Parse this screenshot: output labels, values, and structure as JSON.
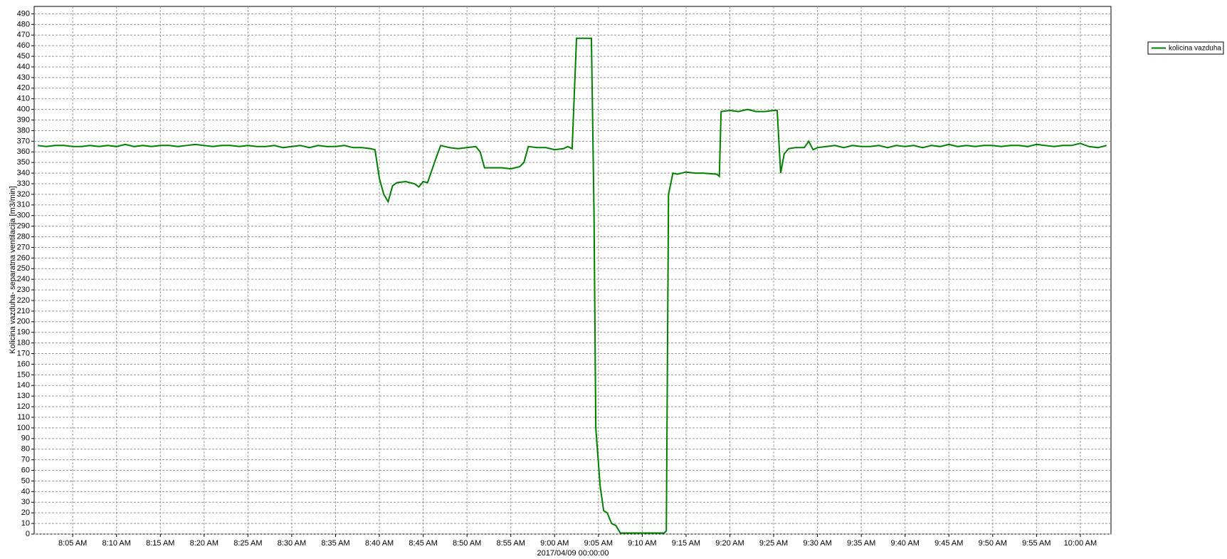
{
  "chart_data": {
    "type": "line",
    "y_label": "Kolicina vazduha- separatna ventilacija [m3/min]",
    "x_label": "2017/04/09 00:00:00",
    "legend": "top-right",
    "grid": true,
    "ylim": [
      0,
      497
    ],
    "yticks": [
      0,
      10,
      20,
      30,
      40,
      50,
      60,
      70,
      80,
      90,
      100,
      110,
      120,
      130,
      140,
      150,
      160,
      170,
      180,
      190,
      200,
      210,
      220,
      230,
      240,
      250,
      260,
      270,
      280,
      290,
      300,
      310,
      320,
      330,
      340,
      350,
      360,
      370,
      380,
      390,
      400,
      410,
      420,
      430,
      440,
      450,
      460,
      470,
      480,
      490
    ],
    "xlim": [
      "08:00:36",
      "10:03:30"
    ],
    "xticks": [
      {
        "value": "08:05",
        "label": "8:05 AM"
      },
      {
        "value": "08:10",
        "label": "8:10 AM"
      },
      {
        "value": "08:15",
        "label": "8:15 AM"
      },
      {
        "value": "08:20",
        "label": "8:20 AM"
      },
      {
        "value": "08:25",
        "label": "8:25 AM"
      },
      {
        "value": "08:30",
        "label": "8:30 AM"
      },
      {
        "value": "08:35",
        "label": "8:35 AM"
      },
      {
        "value": "08:40",
        "label": "8:40 AM"
      },
      {
        "value": "08:45",
        "label": "8:45 AM"
      },
      {
        "value": "08:50",
        "label": "8:50 AM"
      },
      {
        "value": "08:55",
        "label": "8:55 AM"
      },
      {
        "value": "09:00",
        "label": "9:00 AM"
      },
      {
        "value": "09:05",
        "label": "9:05 AM"
      },
      {
        "value": "09:10",
        "label": "9:10 AM"
      },
      {
        "value": "09:15",
        "label": "9:15 AM"
      },
      {
        "value": "09:20",
        "label": "9:20 AM"
      },
      {
        "value": "09:25",
        "label": "9:25 AM"
      },
      {
        "value": "09:30",
        "label": "9:30 AM"
      },
      {
        "value": "09:35",
        "label": "9:35 AM"
      },
      {
        "value": "09:40",
        "label": "9:40 AM"
      },
      {
        "value": "09:45",
        "label": "9:45 AM"
      },
      {
        "value": "09:50",
        "label": "9:50 AM"
      },
      {
        "value": "09:55",
        "label": "9:55 AM"
      },
      {
        "value": "10:00",
        "label": "10:00 AM"
      }
    ],
    "x": [
      "08:01",
      "08:02",
      "08:03",
      "08:04",
      "08:05",
      "08:06",
      "08:07",
      "08:08",
      "08:09",
      "08:10",
      "08:11",
      "08:12",
      "08:13",
      "08:14",
      "08:15",
      "08:16",
      "08:17",
      "08:18",
      "08:19",
      "08:20",
      "08:21",
      "08:22",
      "08:23",
      "08:24",
      "08:25",
      "08:26",
      "08:27",
      "08:28",
      "08:29",
      "08:30",
      "08:31",
      "08:32",
      "08:33",
      "08:34",
      "08:35",
      "08:36",
      "08:37",
      "08:38",
      "08:39",
      "08:39:30",
      "08:40:00",
      "08:40:30",
      "08:41:00",
      "08:41:30",
      "08:42:00",
      "08:43:00",
      "08:44:00",
      "08:44:30",
      "08:45:00",
      "08:45:30",
      "08:46:30",
      "08:47:00",
      "08:48:00",
      "08:49:00",
      "08:50:00",
      "08:51:00",
      "08:51:30",
      "08:52:00",
      "08:53:00",
      "08:54:00",
      "08:55:00",
      "08:56:00",
      "08:56:30",
      "08:57:00",
      "08:58:00",
      "08:59:00",
      "09:00:00",
      "09:01:00",
      "09:01:30",
      "09:02:00",
      "09:02:30",
      "09:04:12",
      "09:04:30",
      "09:04:42",
      "09:05:12",
      "09:05:36",
      "09:06:00",
      "09:06:30",
      "09:07:00",
      "09:07:30",
      "09:12:30",
      "09:12:45",
      "09:13:00",
      "09:13:30",
      "09:14:00",
      "09:15:00",
      "09:16:00",
      "09:17:00",
      "09:18:30",
      "09:18:48",
      "09:19:00",
      "09:20:00",
      "09:21:00",
      "09:22:00",
      "09:23:00",
      "09:24:00",
      "09:25:00",
      "09:25:24",
      "09:25:48",
      "09:26:12",
      "09:26:42",
      "09:27:30",
      "09:28:30",
      "09:29:00",
      "09:29:30",
      "09:30",
      "09:31",
      "09:32",
      "09:33",
      "09:34",
      "09:35",
      "09:36",
      "09:37",
      "09:38",
      "09:39",
      "09:40",
      "09:41",
      "09:42",
      "09:43",
      "09:44",
      "09:45",
      "09:46",
      "09:47",
      "09:48",
      "09:49",
      "09:50",
      "09:51",
      "09:52",
      "09:53",
      "09:54",
      "09:55",
      "09:56",
      "09:57",
      "09:58",
      "09:59",
      "10:00",
      "10:01",
      "10:02",
      "10:03"
    ],
    "series": [
      {
        "name": "kolicina vazduha",
        "color": "#008000",
        "values": [
          366,
          365,
          366,
          366,
          365,
          365,
          366,
          365,
          366,
          365,
          367,
          365,
          366,
          365,
          366,
          366,
          365,
          366,
          367,
          366,
          365,
          366,
          366,
          365,
          366,
          365,
          365,
          366,
          364,
          365,
          366,
          364,
          366,
          365,
          365,
          366,
          364,
          364,
          363,
          362,
          335,
          320,
          313,
          328,
          331,
          332,
          330,
          327,
          332,
          331,
          355,
          366,
          364,
          363,
          364,
          365,
          360,
          345,
          345,
          345,
          344,
          346,
          350,
          365,
          364,
          364,
          362,
          363,
          365,
          363,
          467,
          467,
          300,
          100,
          45,
          22,
          20,
          10,
          8,
          1,
          1,
          3,
          320,
          340,
          339,
          341,
          340,
          340,
          339,
          337,
          398,
          399,
          398,
          400,
          398,
          398,
          399,
          399,
          340,
          358,
          363,
          364,
          364,
          370,
          362,
          364,
          365,
          366,
          364,
          366,
          365,
          365,
          366,
          364,
          366,
          365,
          366,
          364,
          366,
          365,
          367,
          365,
          366,
          365,
          366,
          366,
          365,
          366,
          366,
          365,
          367,
          366,
          365,
          366,
          366,
          368,
          365,
          364,
          366
        ]
      }
    ]
  }
}
